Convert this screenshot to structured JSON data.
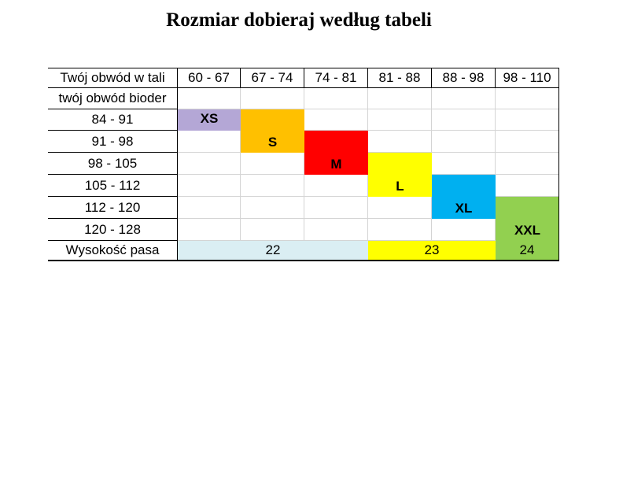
{
  "title": "Rozmiar dobieraj według tabeli",
  "header": {
    "label": "Twój obwód w tali",
    "waist": [
      "60 - 67",
      "67 - 74",
      "74 - 81",
      "81 - 88",
      "88 - 98",
      "98 - 110"
    ]
  },
  "hip_label": "twój obwód bioder",
  "hips": [
    "84 - 91",
    "91 - 98",
    "98 - 105",
    "105 - 112",
    "112 - 120",
    "120 - 128"
  ],
  "sizes": [
    {
      "label": "XS",
      "color": "#b4a7d6"
    },
    {
      "label": "S",
      "color": "#ffc000"
    },
    {
      "label": "M",
      "color": "#ff0000"
    },
    {
      "label": "L",
      "color": "#ffff00"
    },
    {
      "label": "XL",
      "color": "#00b0f0"
    },
    {
      "label": "XXL",
      "color": "#92d050"
    }
  ],
  "rise": {
    "label": "Wysokość pasa",
    "values": [
      {
        "value": "22",
        "color": "#daeef3"
      },
      {
        "value": "23",
        "color": "#ffff00"
      },
      {
        "value": "24",
        "color": "#92d050"
      }
    ]
  }
}
